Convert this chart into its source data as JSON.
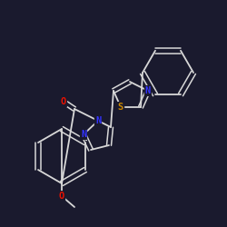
{
  "background_color": "#1a1a2e",
  "bond_color": "#d8d8d8",
  "atom_colors": {
    "N": "#3333ff",
    "S": "#cc8800",
    "O": "#ee1100",
    "C": "#d8d8d8"
  },
  "figsize": [
    2.5,
    2.5
  ],
  "dpi": 100
}
